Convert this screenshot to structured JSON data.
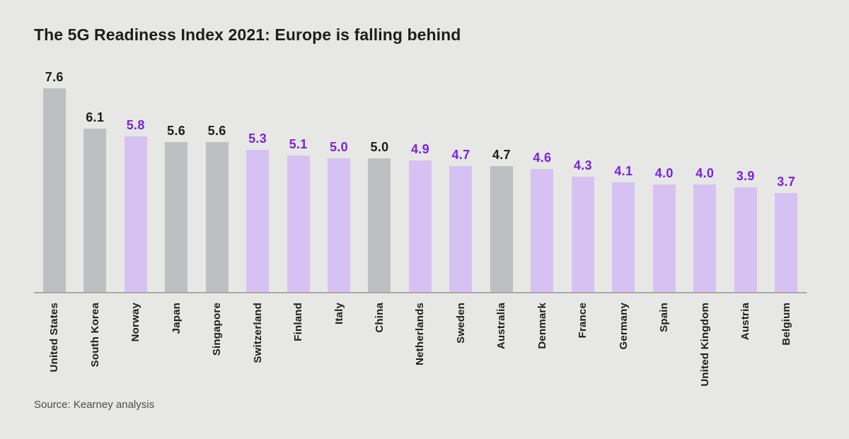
{
  "title": "The 5G Readiness Index 2021: Europe is falling behind",
  "source": "Source: Kearney analysis",
  "colors": {
    "background": "#e7e7e6",
    "bar_non_europe": "#bdbfc1",
    "bar_europe": "#d6c2f2",
    "value_label_non_europe": "#1d1d1b",
    "value_label_europe": "#7823dc",
    "axis_line": "#a8a8a8",
    "country_label": "#1d1d1b",
    "source_text": "#4c4c4c",
    "title_text": "#1d1d1b"
  },
  "chart_data": {
    "type": "bar",
    "title": "The 5G Readiness Index 2021: Europe is falling behind",
    "xlabel": "",
    "ylabel": "",
    "ylim": [
      0,
      7.6
    ],
    "grid": false,
    "legend": false,
    "value_labels": true,
    "x_tick_rotation": -90,
    "categories": [
      "United States",
      "South Korea",
      "Norway",
      "Japan",
      "Singapore",
      "Switzerland",
      "Finland",
      "Italy",
      "China",
      "Netherlands",
      "Sweden",
      "Australia",
      "Denmark",
      "France",
      "Germany",
      "Spain",
      "United Kingdom",
      "Austria",
      "Belgium"
    ],
    "values": [
      7.6,
      6.1,
      5.8,
      5.6,
      5.6,
      5.3,
      5.1,
      5.0,
      5.0,
      4.9,
      4.7,
      4.7,
      4.6,
      4.3,
      4.1,
      4.0,
      4.0,
      3.9,
      3.7
    ],
    "value_display_labels": [
      "7.6",
      "6.1",
      "5.8",
      "5.6",
      "5.6",
      "5.3",
      "5.1",
      "5.0",
      "5.0",
      "4.9",
      "4.7",
      "4.7",
      "4.6",
      "4.3",
      "4.1",
      "4.0",
      "4.0",
      "3.9",
      "3.7"
    ],
    "groups": [
      "non_europe",
      "non_europe",
      "europe",
      "non_europe",
      "non_europe",
      "europe",
      "europe",
      "europe",
      "non_europe",
      "europe",
      "europe",
      "non_europe",
      "europe",
      "europe",
      "europe",
      "europe",
      "europe",
      "europe",
      "europe"
    ],
    "group_colors": {
      "non_europe": "#bdbfc1",
      "europe": "#d6c2f2"
    },
    "group_value_label_colors": {
      "non_europe": "#1d1d1b",
      "europe": "#7823dc"
    }
  }
}
